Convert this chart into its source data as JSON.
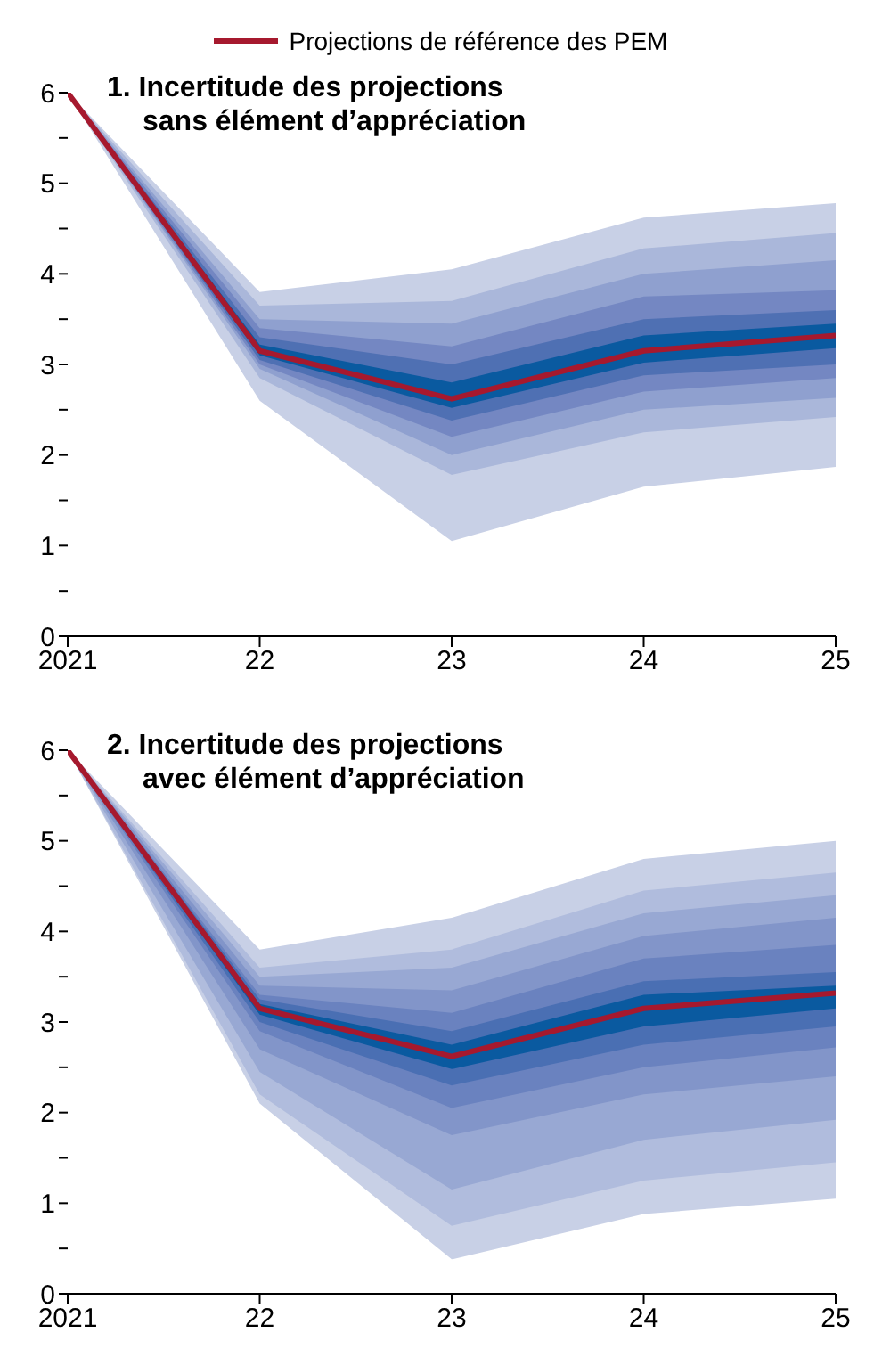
{
  "chart_data": [
    {
      "type": "line",
      "title": "1. Incertitude des projections\nsans élément d’appréciation",
      "x": [
        2021,
        2022,
        2023,
        2024,
        2025
      ],
      "xlim": [
        2021,
        2025
      ],
      "xticks": [
        {
          "value": 2021,
          "label": "2021"
        },
        {
          "value": 2022,
          "label": "22"
        },
        {
          "value": 2023,
          "label": "23"
        },
        {
          "value": 2024,
          "label": "24"
        },
        {
          "value": 2025,
          "label": "25"
        }
      ],
      "ylim": [
        0,
        6
      ],
      "yticks": [
        0,
        {
          "value": 0.5,
          "label": null
        },
        1,
        {
          "value": 1.5,
          "label": null
        },
        2,
        {
          "value": 2.5,
          "label": null
        },
        3,
        {
          "value": 3.5,
          "label": null
        },
        4,
        {
          "value": 4.5,
          "label": null
        },
        5,
        {
          "value": 5.5,
          "label": null
        },
        6
      ],
      "legend": "top",
      "grid": false,
      "series": [
        {
          "type": "area",
          "color": "#c8d0e6",
          "values": [
            null,
            null,
            null,
            null,
            null
          ],
          "lower": [
            6,
            2.6,
            1.05,
            1.65,
            1.87
          ],
          "upper": [
            6,
            3.8,
            4.05,
            4.62,
            4.78
          ]
        },
        {
          "type": "area",
          "color": "#aab7da",
          "values": [
            null,
            null,
            null,
            null,
            null
          ],
          "lower": [
            6,
            2.85,
            1.78,
            2.25,
            2.42
          ],
          "upper": [
            6,
            3.65,
            3.7,
            4.28,
            4.45
          ]
        },
        {
          "type": "area",
          "color": "#8fa0cf",
          "values": [
            null,
            null,
            null,
            null,
            null
          ],
          "lower": [
            6,
            2.95,
            2.0,
            2.5,
            2.63
          ],
          "upper": [
            6,
            3.5,
            3.45,
            4.0,
            4.15
          ]
        },
        {
          "type": "area",
          "color": "#7487c2",
          "values": [
            null,
            null,
            null,
            null,
            null
          ],
          "lower": [
            6,
            3.0,
            2.2,
            2.7,
            2.85
          ],
          "upper": [
            6,
            3.4,
            3.2,
            3.75,
            3.82
          ]
        },
        {
          "type": "area",
          "color": "#4f70b3",
          "values": [
            null,
            null,
            null,
            null,
            null
          ],
          "lower": [
            6,
            3.05,
            2.38,
            2.88,
            3.0
          ],
          "upper": [
            6,
            3.3,
            3.0,
            3.5,
            3.6
          ]
        },
        {
          "type": "area",
          "color": "#0a5aa0",
          "values": [
            null,
            null,
            null,
            null,
            null
          ],
          "lower": [
            6,
            3.1,
            2.52,
            3.02,
            3.18
          ],
          "upper": [
            6,
            3.22,
            2.8,
            3.32,
            3.45
          ]
        },
        {
          "type": "line",
          "name": "Projections de référence des PEM",
          "color": "#a6192e",
          "values": [
            6,
            3.15,
            2.62,
            3.15,
            3.32
          ]
        }
      ]
    },
    {
      "type": "line",
      "title": "2. Incertitude des projections\navec élément d’appréciation",
      "x": [
        2021,
        2022,
        2023,
        2024,
        2025
      ],
      "xlim": [
        2021,
        2025
      ],
      "xticks": [
        {
          "value": 2021,
          "label": "2021"
        },
        {
          "value": 2022,
          "label": "22"
        },
        {
          "value": 2023,
          "label": "23"
        },
        {
          "value": 2024,
          "label": "24"
        },
        {
          "value": 2025,
          "label": "25"
        }
      ],
      "ylim": [
        0,
        6
      ],
      "yticks": [
        0,
        {
          "value": 0.5,
          "label": null
        },
        1,
        {
          "value": 1.5,
          "label": null
        },
        2,
        {
          "value": 2.5,
          "label": null
        },
        3,
        {
          "value": 3.5,
          "label": null
        },
        4,
        {
          "value": 4.5,
          "label": null
        },
        5,
        {
          "value": 5.5,
          "label": null
        },
        6
      ],
      "grid": false,
      "series": [
        {
          "type": "area",
          "color": "#c8d0e6",
          "values": [
            null,
            null,
            null,
            null,
            null
          ],
          "lower": [
            6,
            2.1,
            0.38,
            0.88,
            1.05
          ],
          "upper": [
            6,
            3.8,
            4.15,
            4.8,
            5.0
          ]
        },
        {
          "type": "area",
          "color": "#b0bcdd",
          "values": [
            null,
            null,
            null,
            null,
            null
          ],
          "lower": [
            6,
            2.2,
            0.75,
            1.25,
            1.45
          ],
          "upper": [
            6,
            3.6,
            3.8,
            4.45,
            4.65
          ]
        },
        {
          "type": "area",
          "color": "#98a8d3",
          "values": [
            null,
            null,
            null,
            null,
            null
          ],
          "lower": [
            6,
            2.45,
            1.15,
            1.7,
            1.92
          ],
          "upper": [
            6,
            3.5,
            3.6,
            4.2,
            4.4
          ]
        },
        {
          "type": "area",
          "color": "#8295c9",
          "values": [
            null,
            null,
            null,
            null,
            null
          ],
          "lower": [
            6,
            2.7,
            1.75,
            2.2,
            2.4
          ],
          "upper": [
            6,
            3.4,
            3.35,
            3.95,
            4.15
          ]
        },
        {
          "type": "area",
          "color": "#6a82bf",
          "values": [
            null,
            null,
            null,
            null,
            null
          ],
          "lower": [
            6,
            2.9,
            2.05,
            2.5,
            2.72
          ],
          "upper": [
            6,
            3.3,
            3.1,
            3.7,
            3.85
          ]
        },
        {
          "type": "area",
          "color": "#4a6fb3",
          "values": [
            null,
            null,
            null,
            null,
            null
          ],
          "lower": [
            6,
            3.0,
            2.3,
            2.75,
            2.95
          ],
          "upper": [
            6,
            3.25,
            2.9,
            3.45,
            3.55
          ]
        },
        {
          "type": "area",
          "color": "#0a5aa0",
          "values": [
            null,
            null,
            null,
            null,
            null
          ],
          "lower": [
            6,
            3.08,
            2.48,
            2.95,
            3.15
          ],
          "upper": [
            6,
            3.2,
            2.75,
            3.3,
            3.4
          ]
        },
        {
          "type": "line",
          "color": "#a6192e",
          "values": [
            6,
            3.15,
            2.62,
            3.15,
            3.32
          ]
        }
      ]
    }
  ]
}
